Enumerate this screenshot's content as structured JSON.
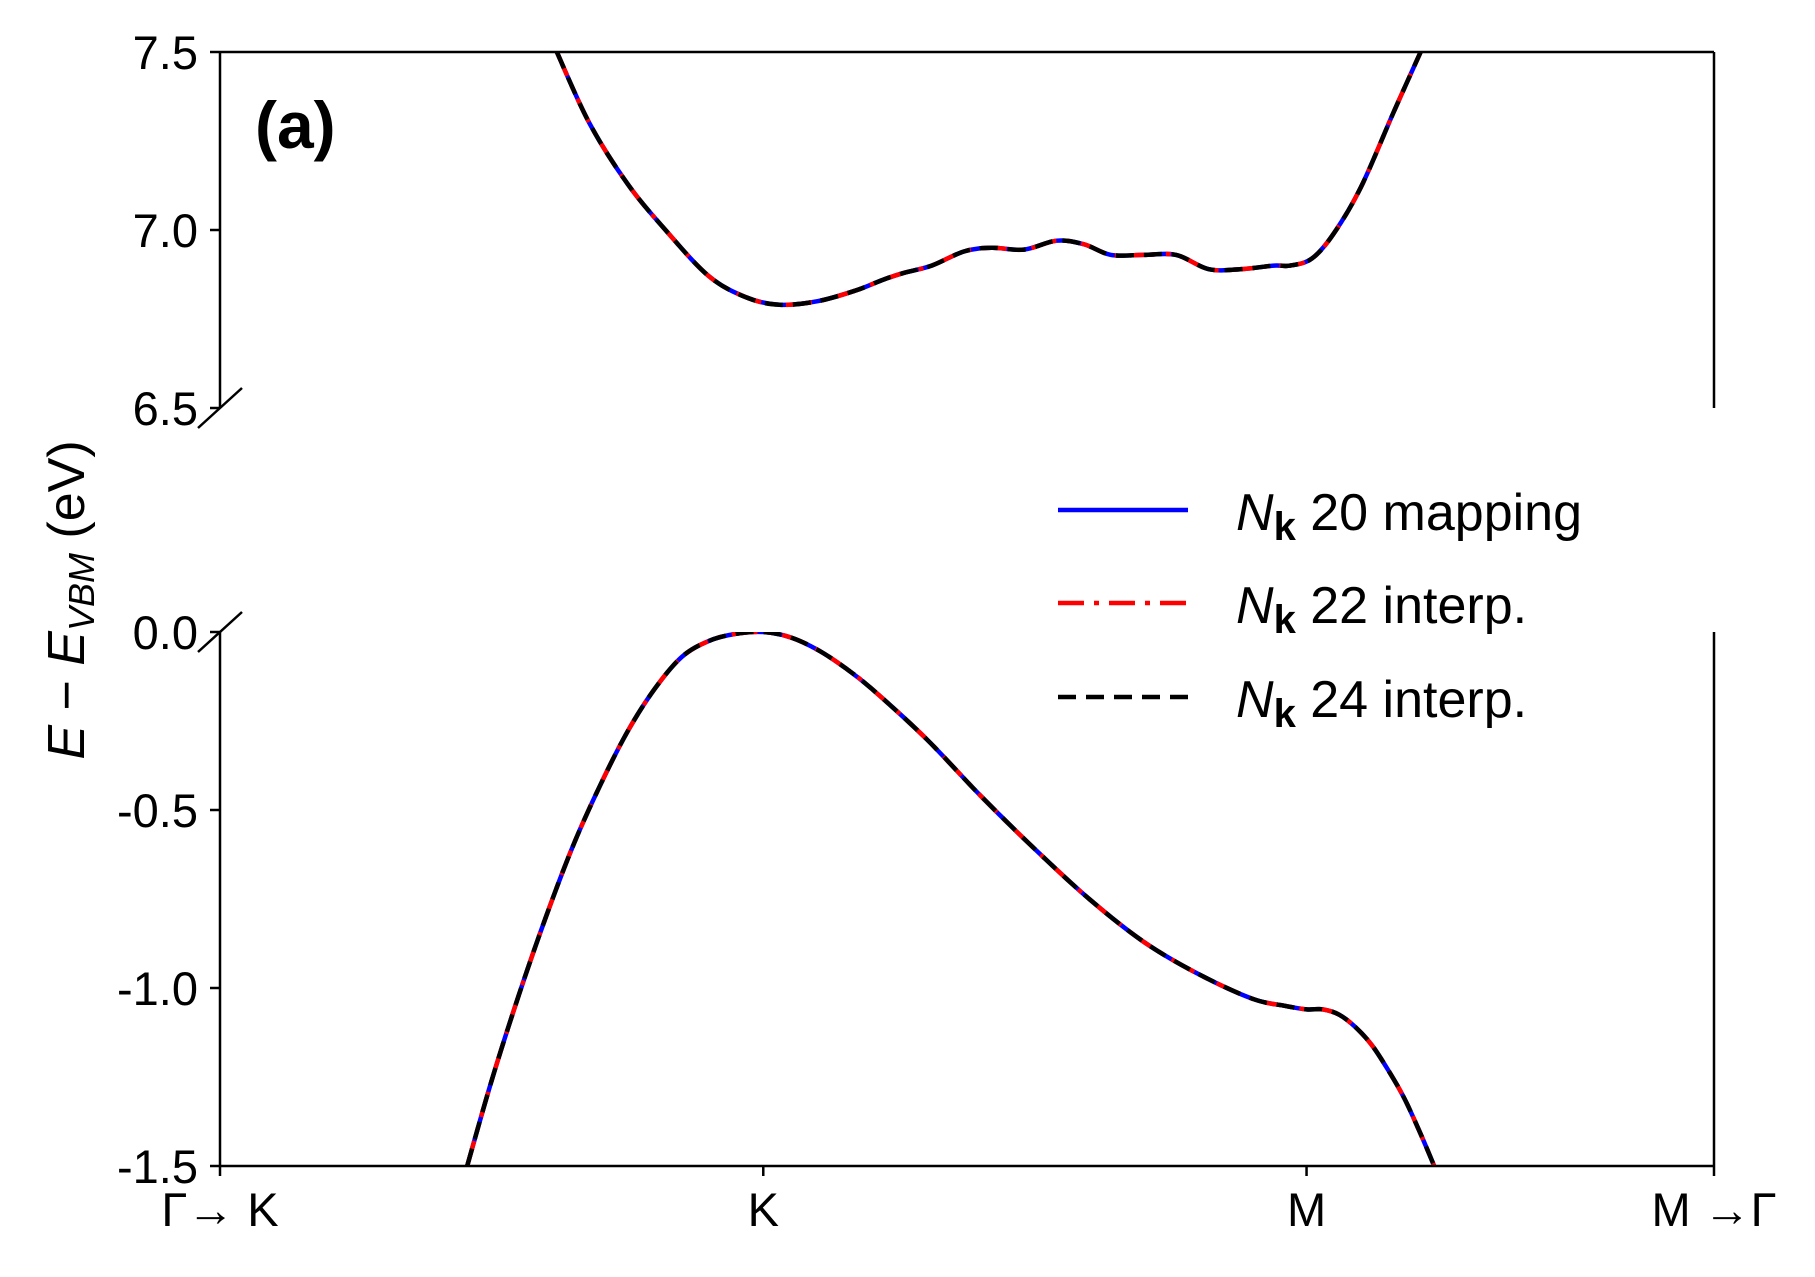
{
  "chart_data": {
    "type": "line",
    "panel_label": "(a)",
    "ylabel": {
      "main": "E",
      "minus": " − ",
      "sub_main": "E",
      "subscript": "VBM",
      "unit": " (eV)"
    },
    "x_ticks": [
      {
        "x": 0.0,
        "label": "Γ→ K"
      },
      {
        "x": 1.0,
        "label": "K"
      },
      {
        "x": 2.0,
        "label": "M"
      },
      {
        "x": 2.75,
        "label": "M →Γ"
      }
    ],
    "xlim": [
      0.0,
      2.75
    ],
    "upper_panel": {
      "ylim": [
        6.5,
        7.5
      ],
      "y_ticks": [
        "6.5",
        "7.0",
        "7.5"
      ],
      "y_tick_values": [
        6.5,
        7.0,
        7.5
      ]
    },
    "lower_panel": {
      "ylim": [
        -1.5,
        0.0
      ],
      "y_ticks": [
        "-1.5",
        "-1.0",
        "-0.5",
        "0.0"
      ],
      "y_tick_values": [
        -1.5,
        -1.0,
        -0.5,
        0.0
      ]
    },
    "grid": false,
    "legend_position": "right",
    "series": [
      {
        "name_symbol": "N",
        "name_sub": "k",
        "name_rest": " 20 mapping",
        "color": "#0000ff",
        "style": "solid"
      },
      {
        "name_symbol": "N",
        "name_sub": "k",
        "name_rest": " 22 interp.",
        "color": "#ff0000",
        "style": "dashdot"
      },
      {
        "name_symbol": "N",
        "name_sub": "k",
        "name_rest": " 24 interp.",
        "color": "#000000",
        "style": "dashed"
      }
    ],
    "conduction_band": {
      "x": [
        0.62,
        0.68,
        0.75,
        0.82,
        0.9,
        0.97,
        1.03,
        1.1,
        1.17,
        1.22,
        1.26,
        1.31,
        1.37,
        1.42,
        1.48,
        1.54,
        1.59,
        1.64,
        1.7,
        1.76,
        1.82,
        1.88,
        1.94,
        1.97,
        2.01,
        2.05,
        2.1,
        2.16,
        2.21
      ],
      "y": [
        7.5,
        7.3,
        7.13,
        7.0,
        6.87,
        6.81,
        6.79,
        6.8,
        6.83,
        6.86,
        6.88,
        6.9,
        6.94,
        6.95,
        6.945,
        6.97,
        6.96,
        6.93,
        6.93,
        6.93,
        6.89,
        6.89,
        6.9,
        6.9,
        6.92,
        6.99,
        7.12,
        7.33,
        7.5
      ]
    },
    "valence_band": {
      "x": [
        0.455,
        0.5,
        0.55,
        0.6,
        0.65,
        0.7,
        0.75,
        0.8,
        0.85,
        0.9,
        0.95,
        1.0,
        1.05,
        1.1,
        1.15,
        1.2,
        1.3,
        1.4,
        1.5,
        1.6,
        1.7,
        1.8,
        1.9,
        1.96,
        2.0,
        2.03,
        2.06,
        2.09,
        2.12,
        2.15,
        2.18,
        2.21,
        2.235
      ],
      "y": [
        -1.5,
        -1.26,
        -1.02,
        -0.8,
        -0.6,
        -0.43,
        -0.28,
        -0.16,
        -0.07,
        -0.025,
        -0.005,
        0.0,
        -0.015,
        -0.05,
        -0.1,
        -0.16,
        -0.3,
        -0.46,
        -0.61,
        -0.75,
        -0.87,
        -0.96,
        -1.03,
        -1.05,
        -1.06,
        -1.06,
        -1.075,
        -1.11,
        -1.16,
        -1.23,
        -1.31,
        -1.41,
        -1.5
      ]
    }
  }
}
